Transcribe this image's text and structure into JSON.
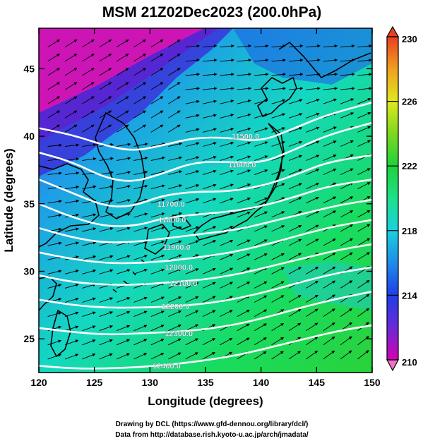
{
  "title": "MSM 21Z02Dec2023 (200.0hPa)",
  "credits": {
    "line1": "Drawing by DCL (https://www.gfd-dennou.org/library/dcl/)",
    "line2": "Data from http://database.rish.kyoto-u.ac.jp/arch/jmadata/"
  },
  "chart_data": {
    "type": "heatmap",
    "description_kind": "map-shaded-temperature-with-height-contours-and-wind-vectors",
    "xlabel": "Longitude (degrees)",
    "ylabel": "Latitude  (degrees)",
    "xlim": [
      120,
      150
    ],
    "ylim": [
      22.5,
      48
    ],
    "xticks": [
      120,
      125,
      130,
      135,
      140,
      145,
      150
    ],
    "yticks": [
      25,
      30,
      35,
      40,
      45
    ],
    "colorbar": {
      "min": 210,
      "max": 230,
      "ticks": [
        210,
        214,
        218,
        222,
        226,
        230
      ],
      "colors": [
        "#d400b0",
        "#6a2ad8",
        "#1e3ee8",
        "#1e8ce8",
        "#1ad0e0",
        "#1ee08a",
        "#1ed23c",
        "#7ed81e",
        "#e0e81e",
        "#f0a01e",
        "#e84020"
      ]
    },
    "contours": [
      {
        "label": "11500.0",
        "level": 11500,
        "points": [
          [
            120,
            40.6
          ],
          [
            123,
            40.1
          ],
          [
            126,
            39.3
          ],
          [
            128.5,
            38.9
          ],
          [
            131,
            39.3
          ],
          [
            134,
            39.9
          ],
          [
            137,
            39.9
          ],
          [
            140,
            39.6
          ],
          [
            143,
            40.6
          ],
          [
            146,
            41.6
          ],
          [
            150,
            42.5
          ]
        ]
      },
      {
        "label": "11600.0",
        "level": 11600,
        "points": [
          [
            120,
            38.8
          ],
          [
            123,
            38.1
          ],
          [
            126,
            36.9
          ],
          [
            128.5,
            36.6
          ],
          [
            131,
            37.2
          ],
          [
            134,
            38.1
          ],
          [
            137,
            38.1
          ],
          [
            140,
            38.0
          ],
          [
            143,
            39.0
          ],
          [
            146,
            40.1
          ],
          [
            150,
            41.0
          ]
        ]
      },
      {
        "label": "11700.0",
        "level": 11700,
        "points": [
          [
            120,
            36.8
          ],
          [
            123,
            35.8
          ],
          [
            126,
            34.8
          ],
          [
            128.5,
            34.8
          ],
          [
            131,
            35.6
          ],
          [
            134,
            35.9
          ],
          [
            137,
            35.9
          ],
          [
            140,
            36.3
          ],
          [
            143,
            37.1
          ],
          [
            146,
            38.1
          ],
          [
            150,
            38.6
          ]
        ]
      },
      {
        "label": "11800.0",
        "level": 11800,
        "points": [
          [
            120,
            35.0
          ],
          [
            123,
            34.0
          ],
          [
            126,
            33.3
          ],
          [
            129,
            33.4
          ],
          [
            131,
            33.9
          ],
          [
            134,
            34.2
          ],
          [
            137,
            34.4
          ],
          [
            140,
            34.8
          ],
          [
            143,
            35.5
          ],
          [
            146,
            36.3
          ],
          [
            150,
            36.8
          ]
        ]
      },
      {
        "label": "11900.0",
        "level": 11900,
        "points": [
          [
            120,
            33.2
          ],
          [
            123,
            32.5
          ],
          [
            126,
            32.1
          ],
          [
            129,
            32.2
          ],
          [
            132,
            32.5
          ],
          [
            135,
            32.8
          ],
          [
            138,
            33.1
          ],
          [
            141,
            33.7
          ],
          [
            144,
            34.3
          ],
          [
            147,
            34.9
          ],
          [
            150,
            35.3
          ]
        ]
      },
      {
        "label": "12000.0",
        "level": 12000,
        "points": [
          [
            120,
            31.4
          ],
          [
            123,
            30.9
          ],
          [
            126,
            30.6
          ],
          [
            129,
            30.6
          ],
          [
            132,
            30.8
          ],
          [
            135,
            31.1
          ],
          [
            138,
            31.5
          ],
          [
            141,
            32.1
          ],
          [
            144,
            32.8
          ],
          [
            147,
            33.4
          ],
          [
            150,
            33.8
          ]
        ]
      },
      {
        "label": "12100.0",
        "level": 12100,
        "points": [
          [
            120,
            29.7
          ],
          [
            123,
            29.2
          ],
          [
            126,
            29.0
          ],
          [
            129,
            29.0
          ],
          [
            132,
            29.2
          ],
          [
            135,
            29.4
          ],
          [
            138,
            29.8
          ],
          [
            141,
            30.4
          ],
          [
            144,
            31.0
          ],
          [
            147,
            31.6
          ],
          [
            150,
            32.0
          ]
        ]
      },
      {
        "label": "12200.0",
        "level": 12200,
        "points": [
          [
            120,
            27.9
          ],
          [
            123,
            27.5
          ],
          [
            126,
            27.3
          ],
          [
            129,
            27.3
          ],
          [
            132,
            27.4
          ],
          [
            135,
            27.6
          ],
          [
            138,
            28.0
          ],
          [
            141,
            28.6
          ],
          [
            144,
            29.3
          ],
          [
            147,
            29.9
          ],
          [
            150,
            30.3
          ]
        ]
      },
      {
        "label": "12300.0",
        "level": 12300,
        "points": [
          [
            120,
            25.8
          ],
          [
            123,
            25.5
          ],
          [
            126,
            25.3
          ],
          [
            129,
            25.4
          ],
          [
            132,
            25.5
          ],
          [
            135,
            25.7
          ],
          [
            138,
            26.1
          ],
          [
            141,
            26.7
          ],
          [
            144,
            27.4
          ],
          [
            147,
            28.0
          ],
          [
            150,
            28.5
          ]
        ]
      },
      {
        "label": "12400.0",
        "level": 12400,
        "points": [
          [
            120,
            23.0
          ],
          [
            123,
            22.8
          ],
          [
            126,
            22.8
          ],
          [
            129,
            22.9
          ],
          [
            132,
            23.1
          ],
          [
            135,
            23.4
          ],
          [
            138,
            23.8
          ],
          [
            141,
            24.4
          ],
          [
            144,
            25.0
          ],
          [
            147,
            25.6
          ],
          [
            150,
            26.0
          ]
        ]
      }
    ],
    "contour_label_positions": [
      {
        "label": "11500.0",
        "lon": 138.6,
        "lat": 40.0
      },
      {
        "label": "11600.0",
        "lon": 138.3,
        "lat": 37.9
      },
      {
        "label": "11700.0",
        "lon": 131.9,
        "lat": 35.0
      },
      {
        "label": "11800.0",
        "lon": 132.0,
        "lat": 33.8
      },
      {
        "label": "11900.0",
        "lon": 132.4,
        "lat": 31.8
      },
      {
        "label": "12000.0",
        "lon": 132.6,
        "lat": 30.3
      },
      {
        "label": "12100.0",
        "lon": 133.0,
        "lat": 29.1
      },
      {
        "label": "12200.0",
        "lon": 132.3,
        "lat": 27.4
      },
      {
        "label": "12300.0",
        "lon": 132.6,
        "lat": 25.4
      },
      {
        "label": "12400.0",
        "lon": 131.5,
        "lat": 23.0
      }
    ]
  }
}
